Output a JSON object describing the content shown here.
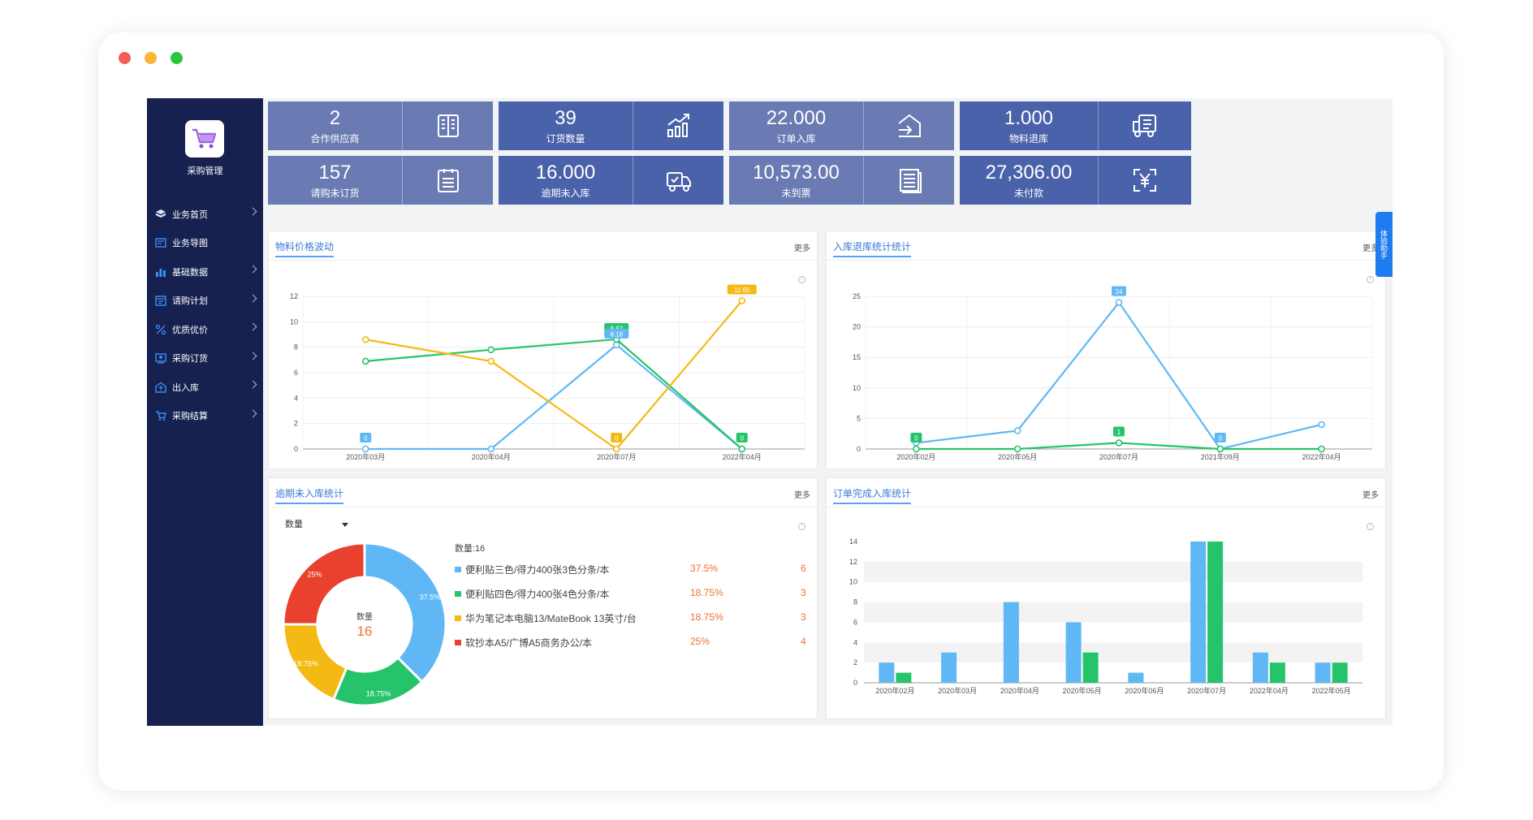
{
  "window": {
    "title": "采购管理"
  },
  "sidebar": {
    "logo_title": "采购管理",
    "items": [
      {
        "label": "业务首页",
        "icon": "cube-icon",
        "has_arrow": true
      },
      {
        "label": "业务导图",
        "icon": "map-icon",
        "has_arrow": false
      },
      {
        "label": "基础数据",
        "icon": "bar-chart-icon",
        "has_arrow": true
      },
      {
        "label": "请购计划",
        "icon": "calendar-icon",
        "has_arrow": true
      },
      {
        "label": "优质优价",
        "icon": "percent-icon",
        "has_arrow": true
      },
      {
        "label": "采购订货",
        "icon": "user-icon",
        "has_arrow": true
      },
      {
        "label": "出入库",
        "icon": "warehouse-icon",
        "has_arrow": true
      },
      {
        "label": "采购结算",
        "icon": "cart-icon",
        "has_arrow": true
      }
    ]
  },
  "cards": [
    {
      "value": "2",
      "label": "合作供应商",
      "icon": "building-icon"
    },
    {
      "value": "39",
      "label": "订货数量",
      "icon": "trend-up-icon"
    },
    {
      "value": "22.000",
      "label": "订单入库",
      "icon": "inbound-icon"
    },
    {
      "value": "1.000",
      "label": "物料退库",
      "icon": "truck-return-icon"
    },
    {
      "value": "157",
      "label": "请购未订货",
      "icon": "clipboard-icon"
    },
    {
      "value": "16.000",
      "label": "逾期未入库",
      "icon": "delivery-truck-icon"
    },
    {
      "value": "10,573.00",
      "label": "未到票",
      "icon": "document-list-icon"
    },
    {
      "value": "27,306.00",
      "label": "未付款",
      "icon": "yuan-scan-icon"
    }
  ],
  "side_tab": {
    "label": "体验助手"
  },
  "panels": {
    "price": {
      "title": "物料价格波动",
      "more": "更多"
    },
    "stock": {
      "title": "入库退库统计统计",
      "more": "更多"
    },
    "overdue": {
      "title": "逾期未入库统计",
      "more": "更多",
      "select_value": "数量",
      "center_label": "数量",
      "center_value": "16",
      "legend_title": "数量:16"
    },
    "order": {
      "title": "订单完成入库统计",
      "more": "更多"
    }
  },
  "chart_data": [
    {
      "type": "line",
      "title": "物料价格波动",
      "categories": [
        "2020年03月",
        "2020年04月",
        "2020年07月",
        "2022年04月"
      ],
      "ylim": [
        0,
        12
      ],
      "yticks": [
        0,
        2,
        4,
        6,
        8,
        10,
        12
      ],
      "series": [
        {
          "values": [
            0,
            0,
            8.18,
            0
          ],
          "color": "#5fb8f5"
        },
        {
          "values": [
            6.9,
            7.8,
            8.62,
            0
          ],
          "color": "#26c46a"
        },
        {
          "values": [
            8.6,
            6.9,
            0,
            11.65
          ],
          "color": "#f5b914"
        }
      ],
      "data_labels": [
        {
          "series": 0,
          "index": 0,
          "text": "0"
        },
        {
          "series": 1,
          "index": 2,
          "text": "8.62"
        },
        {
          "series": 0,
          "index": 2,
          "text": "8.18"
        },
        {
          "series": 2,
          "index": 2,
          "text": "0"
        },
        {
          "series": 1,
          "index": 3,
          "text": "0"
        },
        {
          "series": 2,
          "index": 3,
          "text": "11.65"
        }
      ],
      "grid": true
    },
    {
      "type": "line",
      "title": "入库退库统计统计",
      "categories": [
        "2020年02月",
        "2020年05月",
        "2020年07月",
        "2021年09月",
        "2022年04月"
      ],
      "ylim": [
        0,
        25
      ],
      "yticks": [
        0,
        5,
        10,
        15,
        20,
        25
      ],
      "series": [
        {
          "values": [
            1,
            3,
            24,
            0,
            4
          ],
          "color": "#5fb8f5"
        },
        {
          "values": [
            0,
            0,
            1,
            0,
            0
          ],
          "color": "#26c46a"
        }
      ],
      "data_labels": [
        {
          "series": 0,
          "index": 2,
          "text": "24"
        },
        {
          "series": 1,
          "index": 0,
          "text": "0"
        },
        {
          "series": 1,
          "index": 2,
          "text": "1"
        },
        {
          "series": 0,
          "index": 3,
          "text": "0"
        }
      ],
      "grid": true
    },
    {
      "type": "pie",
      "title": "逾期未入库统计",
      "slices": [
        {
          "name": "便利贴三色/得力400张3色分条/本",
          "pct": "37.5%",
          "value": 6,
          "color": "#5fb8f5"
        },
        {
          "name": "便利贴四色/得力400张4色分条/本",
          "pct": "18.75%",
          "value": 3,
          "color": "#26c46a"
        },
        {
          "name": "华为笔记本电脑13/MateBook 13英寸/台",
          "pct": "18.75%",
          "value": 3,
          "color": "#f5b914"
        },
        {
          "name": "软抄本A5/广博A5商务办公/本",
          "pct": "25%",
          "value": 4,
          "color": "#e8412e"
        }
      ]
    },
    {
      "type": "bar",
      "title": "订单完成入库统计",
      "categories": [
        "2020年02月",
        "2020年03月",
        "2020年04月",
        "2020年05月",
        "2020年06月",
        "2020年07月",
        "2022年04月",
        "2022年05月"
      ],
      "ylim": [
        0,
        14
      ],
      "yticks": [
        0,
        2,
        4,
        6,
        8,
        10,
        12,
        14
      ],
      "series": [
        {
          "values": [
            2,
            3,
            8,
            6,
            1,
            14,
            3,
            2
          ],
          "color": "#5fb8f5"
        },
        {
          "values": [
            1,
            0,
            0,
            3,
            0,
            14,
            2,
            2
          ],
          "color": "#26c46a"
        }
      ],
      "grid": true
    }
  ]
}
